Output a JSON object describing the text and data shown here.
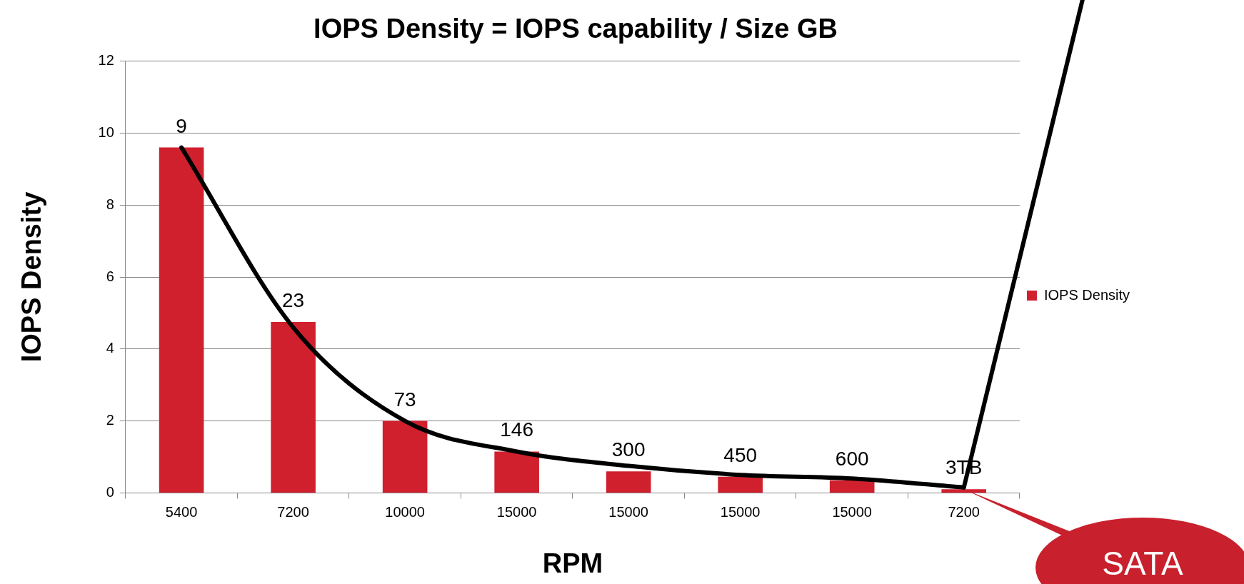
{
  "chart_data": {
    "type": "bar",
    "title": "IOPS Density = IOPS capability / Size GB",
    "xlabel": "RPM",
    "ylabel": "IOPS Density",
    "categories": [
      "5400",
      "7200",
      "10000",
      "15000",
      "15000",
      "15000",
      "15000",
      "7200"
    ],
    "series": [
      {
        "name": "IOPS Density",
        "color": "#d0202e",
        "values": [
          9.6,
          4.75,
          2.0,
          1.15,
          0.6,
          0.45,
          0.35,
          0.1
        ]
      },
      {
        "type": "line",
        "color": "#000000",
        "values": [
          9.6,
          4.6,
          2.0,
          1.15,
          0.75,
          0.5,
          0.4,
          0.15
        ]
      }
    ],
    "ylim": [
      0,
      12
    ],
    "yticks": [
      0,
      2,
      4,
      6,
      8,
      10,
      12
    ],
    "grid": "y",
    "legend": "right",
    "marker": "none",
    "line_style": "solid",
    "annotations": [
      "9",
      "23",
      "73",
      "146",
      "300",
      "450",
      "600",
      "3TB",
      "SATA"
    ]
  }
}
